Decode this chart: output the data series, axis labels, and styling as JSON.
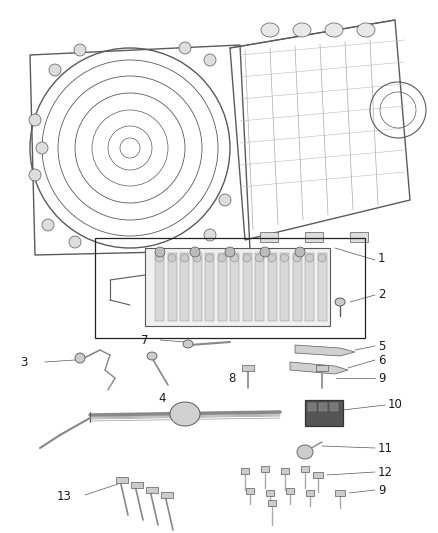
{
  "bg": "#ffffff",
  "lc": "#5a5a5a",
  "tc": "#1a1a1a",
  "fs": 8.5,
  "fw": 4.38,
  "fh": 5.33,
  "dpi": 100
}
